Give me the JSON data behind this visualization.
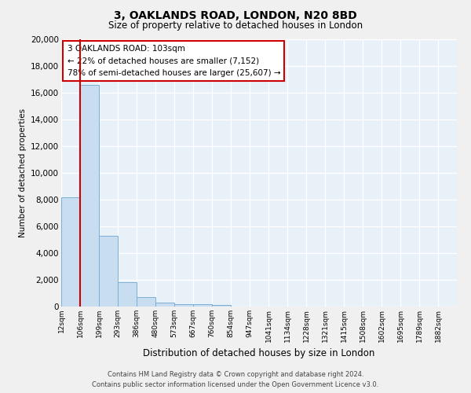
{
  "title": "3, OAKLANDS ROAD, LONDON, N20 8BD",
  "subtitle": "Size of property relative to detached houses in London",
  "xlabel": "Distribution of detached houses by size in London",
  "ylabel": "Number of detached properties",
  "bar_color": "#c9ddf0",
  "bar_edge_color": "#7bafd4",
  "background_color": "#e8f0f8",
  "grid_color": "#ffffff",
  "fig_facecolor": "#f0f0f0",
  "bin_labels": [
    "12sqm",
    "106sqm",
    "199sqm",
    "293sqm",
    "386sqm",
    "480sqm",
    "573sqm",
    "667sqm",
    "760sqm",
    "854sqm",
    "947sqm",
    "1041sqm",
    "1134sqm",
    "1228sqm",
    "1321sqm",
    "1415sqm",
    "1508sqm",
    "1602sqm",
    "1695sqm",
    "1789sqm",
    "1882sqm"
  ],
  "bar_heights": [
    8200,
    16600,
    5300,
    1800,
    700,
    300,
    200,
    150,
    120,
    0,
    0,
    0,
    0,
    0,
    0,
    0,
    0,
    0,
    0,
    0,
    0
  ],
  "ylim": [
    0,
    20000
  ],
  "yticks": [
    0,
    2000,
    4000,
    6000,
    8000,
    10000,
    12000,
    14000,
    16000,
    18000,
    20000
  ],
  "vline_x": 1,
  "vline_color": "#cc0000",
  "annotation_title": "3 OAKLANDS ROAD: 103sqm",
  "annotation_line1": "← 22% of detached houses are smaller (7,152)",
  "annotation_line2": "78% of semi-detached houses are larger (25,607) →",
  "annotation_box_color": "#ffffff",
  "annotation_box_edge": "#cc0000",
  "footer_line1": "Contains HM Land Registry data © Crown copyright and database right 2024.",
  "footer_line2": "Contains public sector information licensed under the Open Government Licence v3.0."
}
